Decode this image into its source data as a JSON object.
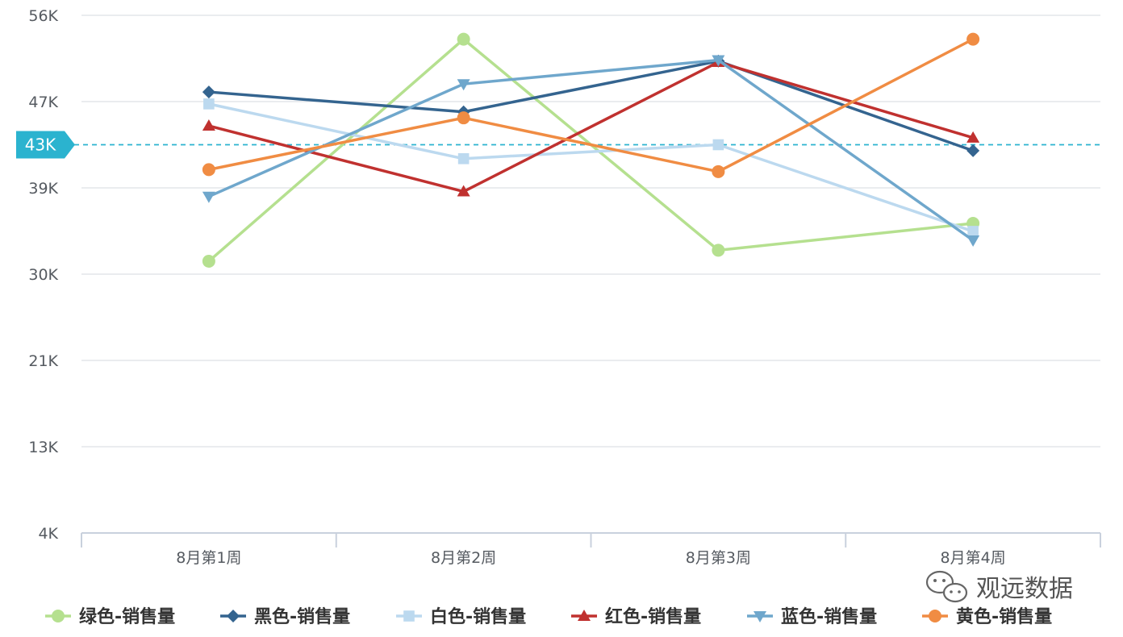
{
  "chart_data": {
    "type": "line",
    "categories": [
      "8月第1周",
      "8月第2周",
      "8月第3周",
      "8月第4周"
    ],
    "y_ticks": [
      "4K",
      "13K",
      "21K",
      "30K",
      "39K",
      "47K",
      "56K"
    ],
    "ylim": [
      4,
      56
    ],
    "grid": true,
    "legend_position": "bottom",
    "reference_line": {
      "value": 43,
      "label": "43K",
      "color": "#2bb3cf"
    },
    "series": [
      {
        "name": "绿色-销售量",
        "color": "#b5e08f",
        "marker": "circle",
        "values": [
          31.3,
          53.6,
          32.4,
          35.1
        ]
      },
      {
        "name": "黑色-销售量",
        "color": "#34648f",
        "marker": "diamond",
        "values": [
          48.3,
          46.3,
          51.4,
          42.4
        ]
      },
      {
        "name": "白色-销售量",
        "color": "#bcd9ef",
        "marker": "square",
        "values": [
          47.1,
          41.6,
          43.0,
          34.3
        ]
      },
      {
        "name": "红色-销售量",
        "color": "#c0312f",
        "marker": "triangle-up",
        "values": [
          44.9,
          38.3,
          51.3,
          43.7
        ]
      },
      {
        "name": "蓝色-销售量",
        "color": "#6fa7cc",
        "marker": "triangle-down",
        "values": [
          37.8,
          49.1,
          51.5,
          33.4
        ]
      },
      {
        "name": "黄色-销售量",
        "color": "#f08c43",
        "marker": "circle",
        "values": [
          40.5,
          45.7,
          40.3,
          53.6
        ]
      }
    ]
  },
  "watermark": {
    "text": "观远数据",
    "icon": "wechat-icon"
  }
}
